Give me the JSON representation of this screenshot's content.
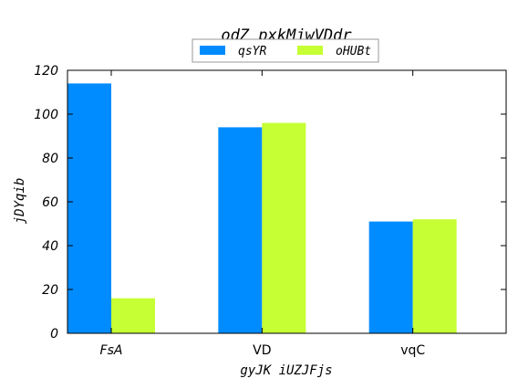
{
  "chart_data": {
    "type": "bar",
    "title": "odZ pxkMjwVDdr",
    "xlabel": "gyJK iUZJFjs",
    "ylabel": "jDYqib",
    "categories": [
      "FsA",
      "VD",
      "vqC"
    ],
    "series": [
      {
        "name": "qsYR",
        "values": [
          114,
          94,
          51
        ],
        "color": "#008cff"
      },
      {
        "name": "oHUBt",
        "values": [
          16,
          96,
          52
        ],
        "color": "#c6ff33"
      }
    ],
    "ylim": [
      0,
      120
    ],
    "yticks": [
      0,
      20,
      40,
      60,
      80,
      100,
      120
    ],
    "grid": false,
    "legend_position": "top-center"
  }
}
